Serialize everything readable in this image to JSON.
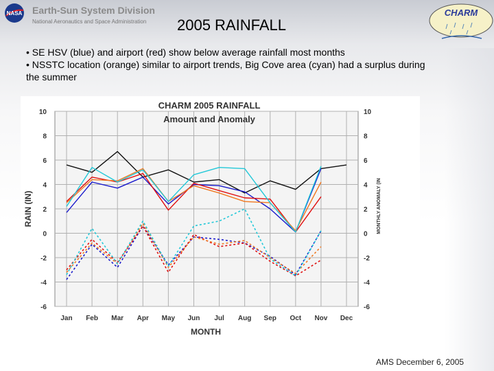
{
  "header": {
    "org_title": "Earth-Sun System Division",
    "org_subtitle": "National Aeronautics and Space Administration",
    "nasa_logo_text": "NASA",
    "charm_logo_text": "CHARM",
    "slide_title": "2005 RAINFALL"
  },
  "bullets": [
    "• SE HSV (blue) and airport (red) show below average rainfall most months",
    "• NSSTC location (orange) similar to airport trends, Big Cove area (cyan) had a surplus during the summer"
  ],
  "footer": {
    "text": "AMS December 6, 2005"
  },
  "colors": {
    "black": "#111111",
    "blue": "#1a1acc",
    "red": "#e01010",
    "orange": "#f07820",
    "cyan": "#22c8d8",
    "grid": "#b0b0b0"
  },
  "chart_data": {
    "type": "line",
    "title": "CHARM 2005 RAINFALL",
    "subtitle": "Amount and Anomaly",
    "xlabel": "MONTH",
    "ylabel": "RAIN (IN)",
    "ylabel_right": "MONTHLY ANOMALY (IN",
    "categories": [
      "Jan",
      "Feb",
      "Mar",
      "Apr",
      "May",
      "Jun",
      "Jul",
      "Aug",
      "Sep",
      "Oct",
      "Nov",
      "Dec"
    ],
    "ylim": [
      -6,
      10
    ],
    "yticks": [
      "10",
      "8",
      "6",
      "4",
      "2",
      "0",
      "-2",
      "-4",
      "-6"
    ],
    "grid": true,
    "series": [
      {
        "color": "black",
        "style": "solid",
        "values": [
          5.6,
          5.0,
          6.7,
          4.6,
          5.2,
          4.2,
          4.4,
          3.3,
          4.3,
          3.6,
          5.3,
          5.6
        ]
      },
      {
        "color": "blue",
        "style": "solid",
        "values": [
          1.7,
          4.2,
          3.7,
          4.6,
          2.4,
          4.0,
          3.9,
          3.4,
          2.0,
          0.1,
          5.3,
          null
        ]
      },
      {
        "color": "red",
        "style": "solid",
        "values": [
          2.6,
          4.6,
          4.2,
          4.9,
          1.9,
          4.1,
          3.5,
          2.9,
          2.8,
          0.1,
          3.0,
          null
        ]
      },
      {
        "color": "orange",
        "style": "solid",
        "values": [
          2.5,
          4.4,
          4.3,
          5.3,
          2.6,
          3.9,
          3.3,
          2.6,
          2.5,
          0.2,
          4.2,
          null
        ]
      },
      {
        "color": "cyan",
        "style": "solid",
        "values": [
          2.2,
          5.4,
          4.2,
          5.2,
          2.6,
          4.8,
          5.4,
          5.3,
          2.5,
          0.1,
          5.5,
          null
        ]
      },
      {
        "color": "blue",
        "style": "dashed",
        "values": [
          -3.8,
          -0.9,
          -2.8,
          0.6,
          -2.6,
          -0.3,
          -0.5,
          -0.8,
          -1.9,
          -3.4,
          0.2,
          null
        ]
      },
      {
        "color": "red",
        "style": "dashed",
        "values": [
          -3.0,
          -0.5,
          -2.4,
          0.6,
          -3.2,
          -0.1,
          -1.1,
          -0.8,
          -2.3,
          -3.5,
          -2.2,
          null
        ]
      },
      {
        "color": "orange",
        "style": "dashed",
        "values": [
          -3.2,
          -0.8,
          -2.5,
          0.8,
          -2.8,
          -0.3,
          -0.9,
          -0.6,
          -2.0,
          -3.3,
          -1.1,
          null
        ]
      },
      {
        "color": "cyan",
        "style": "dashed",
        "values": [
          -3.4,
          0.4,
          -2.5,
          1.0,
          -2.7,
          0.6,
          1.0,
          2.0,
          -2.1,
          -3.5,
          0.2,
          null
        ]
      }
    ]
  }
}
